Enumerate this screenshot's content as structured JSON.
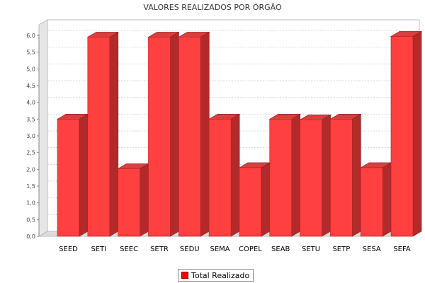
{
  "chart_data": {
    "type": "bar",
    "title": "VALORES REALIZADOS POR ÓRGÃO",
    "xlabel": "",
    "ylabel": "",
    "categories": [
      "SEED",
      "SETI",
      "SEEC",
      "SETR",
      "SEDU",
      "SEMA",
      "COPEL",
      "SEAB",
      "SETU",
      "SETP",
      "SESA",
      "SEFA"
    ],
    "series": [
      {
        "name": "Total Realizado",
        "color": "#ff0000",
        "values": [
          3.5,
          5.95,
          2.02,
          5.95,
          5.95,
          3.5,
          2.05,
          3.5,
          3.48,
          3.5,
          2.05,
          5.97
        ]
      }
    ],
    "ylim": [
      0,
      6.0
    ],
    "yticks": [
      "0,0",
      "0,5",
      "1,0",
      "1,5",
      "2,0",
      "2,5",
      "3,0",
      "3,5",
      "4,0",
      "4,5",
      "5,0",
      "5,5",
      "6,0"
    ],
    "grid": true,
    "legend_position": "bottom"
  }
}
